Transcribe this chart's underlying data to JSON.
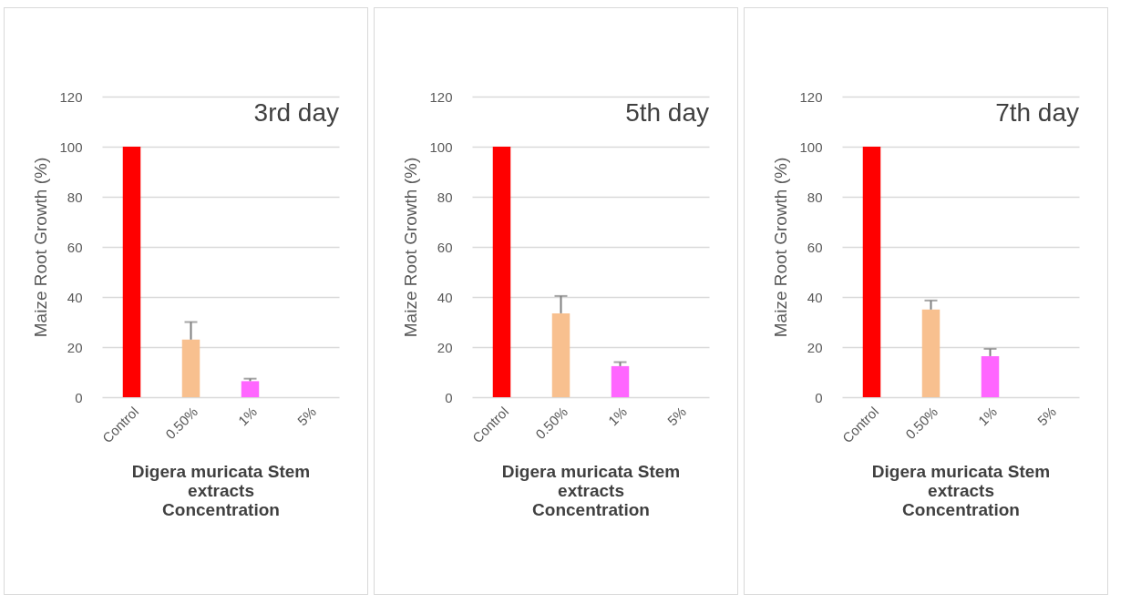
{
  "chart_data": [
    {
      "type": "bar",
      "title": "3rd day",
      "xlabel": "Digera muricata Stem extracts Concentration",
      "ylabel": "Maize Root Growth (%)",
      "categories": [
        "Control",
        "0.50%",
        "1%",
        "5%"
      ],
      "values": [
        100,
        23,
        6.4,
        0
      ],
      "colors": [
        "#ff0000",
        "#f8c08f",
        "#ff66ff",
        "#ff66ff"
      ],
      "errors": [
        null,
        [
          23,
          30
        ],
        [
          6.4,
          7.4
        ],
        null
      ],
      "ylim": [
        0,
        120
      ],
      "yticks": [
        0,
        20,
        40,
        60,
        80,
        100,
        120
      ],
      "grid": "y"
    },
    {
      "type": "bar",
      "title": "5th day",
      "xlabel": "Digera muricata Stem extracts Concentration",
      "ylabel": "Maize Root Growth (%)",
      "categories": [
        "Control",
        "0.50%",
        "1%",
        "5%"
      ],
      "values": [
        100,
        33.5,
        12.4,
        0
      ],
      "colors": [
        "#ff0000",
        "#f8c08f",
        "#ff66ff",
        "#ff66ff"
      ],
      "errors": [
        null,
        [
          33.5,
          40.4
        ],
        [
          12.4,
          14
        ],
        null
      ],
      "ylim": [
        0,
        120
      ],
      "yticks": [
        0,
        20,
        40,
        60,
        80,
        100,
        120
      ],
      "grid": "y"
    },
    {
      "type": "bar",
      "title": "7th day",
      "xlabel": "Digera muricata Stem extracts Concentration",
      "ylabel": "Maize Root Growth (%)",
      "categories": [
        "Control",
        "0.50%",
        "1%",
        "5%"
      ],
      "values": [
        100,
        35,
        16.4,
        0
      ],
      "colors": [
        "#ff0000",
        "#f8c08f",
        "#ff66ff",
        "#ff66ff"
      ],
      "errors": [
        null,
        [
          35,
          38.6
        ],
        [
          16.4,
          19.3
        ],
        null
      ],
      "ylim": [
        0,
        120
      ],
      "yticks": [
        0,
        20,
        40,
        60,
        80,
        100,
        120
      ],
      "grid": "y"
    }
  ]
}
